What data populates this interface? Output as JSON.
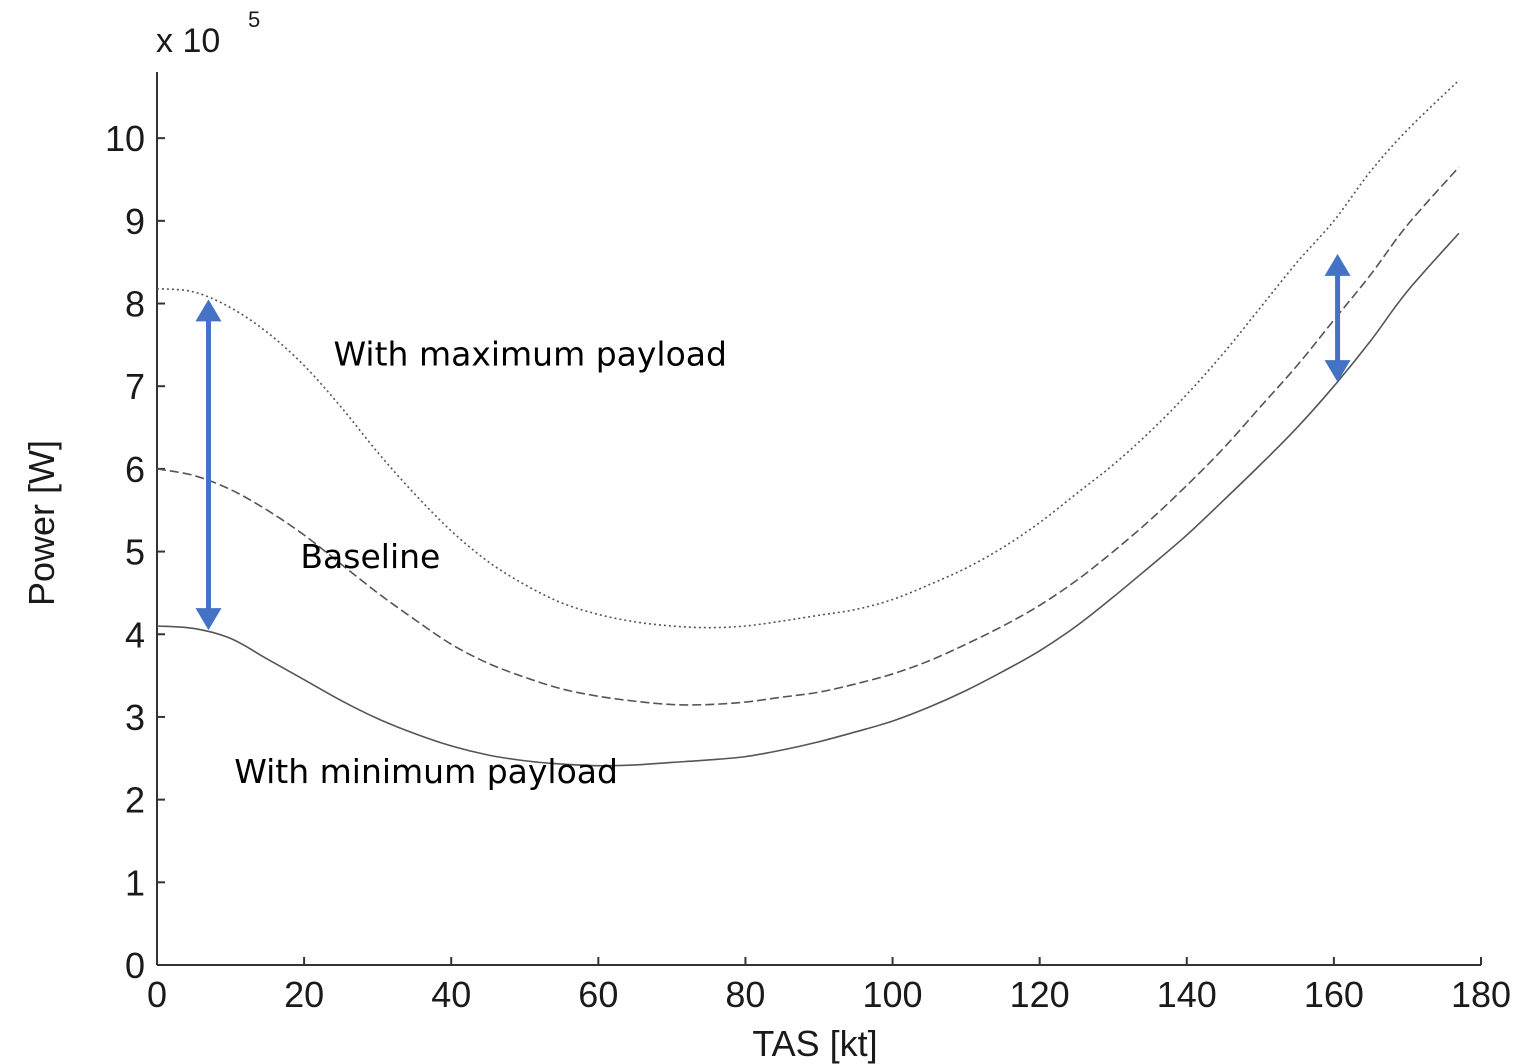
{
  "chart_data": {
    "type": "line",
    "title": "",
    "xlabel": "TAS [kt]",
    "ylabel": "Power [W]",
    "y_multiplier": {
      "base": "x 10",
      "exponent": "5"
    },
    "xlim": [
      0,
      180
    ],
    "ylim": [
      0,
      10.8
    ],
    "x_ticks": [
      0,
      20,
      40,
      60,
      80,
      100,
      120,
      140,
      160,
      180
    ],
    "y_ticks": [
      0,
      1,
      2,
      3,
      4,
      5,
      6,
      7,
      8,
      9,
      10
    ],
    "grid": false,
    "legend": "none",
    "series": [
      {
        "style": "dotted",
        "x": [
          0,
          5,
          10,
          15,
          20,
          25,
          30,
          35,
          40,
          45,
          50,
          55,
          60,
          65,
          70,
          75,
          80,
          85,
          90,
          95,
          100,
          105,
          110,
          115,
          120,
          125,
          130,
          135,
          140,
          145,
          150,
          155,
          160,
          165,
          170,
          177
        ],
        "y": [
          8.18,
          8.14,
          7.95,
          7.65,
          7.25,
          6.75,
          6.2,
          5.7,
          5.25,
          4.88,
          4.6,
          4.38,
          4.24,
          4.15,
          4.1,
          4.08,
          4.1,
          4.16,
          4.23,
          4.3,
          4.42,
          4.6,
          4.8,
          5.05,
          5.35,
          5.7,
          6.05,
          6.45,
          6.9,
          7.4,
          7.95,
          8.5,
          9.0,
          9.6,
          10.1,
          10.7
        ]
      },
      {
        "style": "dashed",
        "x": [
          0,
          5,
          10,
          15,
          20,
          25,
          30,
          35,
          40,
          45,
          50,
          55,
          60,
          65,
          70,
          75,
          80,
          85,
          90,
          95,
          100,
          105,
          110,
          115,
          120,
          125,
          130,
          135,
          140,
          145,
          150,
          155,
          160,
          165,
          170,
          177
        ],
        "y": [
          6.0,
          5.92,
          5.75,
          5.5,
          5.2,
          4.85,
          4.5,
          4.18,
          3.88,
          3.65,
          3.48,
          3.34,
          3.25,
          3.19,
          3.15,
          3.15,
          3.18,
          3.24,
          3.3,
          3.4,
          3.52,
          3.68,
          3.88,
          4.1,
          4.35,
          4.65,
          5.0,
          5.38,
          5.8,
          6.25,
          6.75,
          7.25,
          7.8,
          8.35,
          8.95,
          9.65
        ]
      },
      {
        "style": "solid",
        "x": [
          0,
          5,
          10,
          15,
          20,
          25,
          30,
          35,
          40,
          45,
          50,
          55,
          60,
          65,
          70,
          75,
          80,
          85,
          90,
          95,
          100,
          105,
          110,
          115,
          120,
          125,
          130,
          135,
          140,
          145,
          150,
          155,
          160,
          165,
          170,
          177
        ],
        "y": [
          4.1,
          4.07,
          3.95,
          3.7,
          3.45,
          3.2,
          2.98,
          2.8,
          2.65,
          2.54,
          2.47,
          2.43,
          2.41,
          2.42,
          2.45,
          2.48,
          2.52,
          2.6,
          2.7,
          2.82,
          2.95,
          3.12,
          3.32,
          3.55,
          3.8,
          4.1,
          4.45,
          4.82,
          5.2,
          5.62,
          6.05,
          6.5,
          7.0,
          7.55,
          8.15,
          8.85
        ]
      }
    ],
    "annotations": [
      {
        "text": "With maximum payload",
        "x": 24,
        "y": 7.25
      },
      {
        "text": "Baseline",
        "x": 19.5,
        "y": 4.8
      },
      {
        "text": "With minimum payload",
        "x": 10.5,
        "y": 2.2
      }
    ],
    "arrows": [
      {
        "x": 7,
        "y_from": 4.05,
        "y_to": 8.05,
        "color": "#4472c4"
      },
      {
        "x": 160.5,
        "y_from": 7.05,
        "y_to": 8.6,
        "color": "#4472c4"
      }
    ]
  }
}
